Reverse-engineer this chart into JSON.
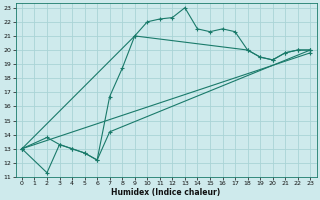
{
  "xlabel": "Humidex (Indice chaleur)",
  "bg_color": "#ceeaec",
  "grid_color": "#aad4d6",
  "line_color": "#1a7a6a",
  "xlim": [
    -0.5,
    23.5
  ],
  "ylim": [
    11,
    23.3
  ],
  "xticks": [
    0,
    1,
    2,
    3,
    4,
    5,
    6,
    7,
    8,
    9,
    10,
    11,
    12,
    13,
    14,
    15,
    16,
    17,
    18,
    19,
    20,
    21,
    22,
    23
  ],
  "yticks": [
    11,
    12,
    13,
    14,
    15,
    16,
    17,
    18,
    19,
    20,
    21,
    22,
    23
  ],
  "lines": [
    {
      "x": [
        0,
        9,
        10,
        11,
        12,
        13,
        14,
        15,
        16,
        17,
        18,
        19,
        20,
        21,
        22,
        23
      ],
      "y": [
        13,
        21.0,
        22.0,
        22.2,
        22.3,
        23.0,
        21.5,
        21.3,
        21.5,
        21.3,
        20.0,
        19.5,
        19.3,
        19.8,
        20.0,
        20.0
      ]
    },
    {
      "x": [
        0,
        2,
        3,
        4,
        5,
        6,
        7,
        8,
        9,
        18,
        19,
        20,
        21,
        22,
        23
      ],
      "y": [
        13,
        11.3,
        13.3,
        13.0,
        12.7,
        12.2,
        16.7,
        18.7,
        21.0,
        20.0,
        19.5,
        19.3,
        19.8,
        20.0,
        20.0
      ]
    },
    {
      "x": [
        0,
        2,
        3,
        4,
        5,
        6,
        7,
        23
      ],
      "y": [
        13,
        13.8,
        13.3,
        13.0,
        12.7,
        12.2,
        14.2,
        20.0
      ]
    },
    {
      "x": [
        0,
        23
      ],
      "y": [
        13,
        19.8
      ]
    }
  ]
}
